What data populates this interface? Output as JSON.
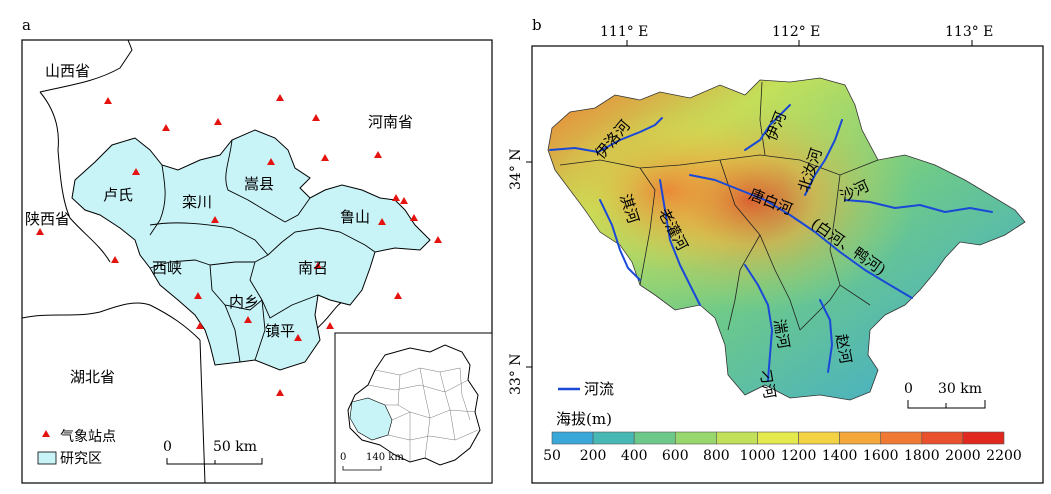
{
  "panel_a": {
    "label": "a",
    "provinces": {
      "shanxi": "山西省",
      "henan": "河南省",
      "shaanxi": "陕西省",
      "hubei": "湖北省"
    },
    "counties": {
      "lushi": "卢氏",
      "luanchuan": "栾川",
      "songxian": "嵩县",
      "lushan": "鲁山",
      "xixia": "西峡",
      "nanzhao": "南召",
      "neixiang": "内乡",
      "zhenping": "镇平"
    },
    "legend": {
      "station": "气象站点",
      "study_area": "研究区"
    },
    "scale": {
      "zero": "0",
      "value": "50 km"
    },
    "inset_scale": {
      "zero": "0",
      "value": "140 km"
    }
  },
  "panel_b": {
    "label": "b",
    "lon_ticks": [
      "111° E",
      "112° E",
      "113° E"
    ],
    "lat_ticks": [
      "34° N",
      "33° N"
    ],
    "rivers": {
      "yiluo": "伊洛河",
      "yi": "伊河",
      "beiru": "北汝河",
      "sha": "沙河",
      "tangbai": "唐白河",
      "baiya": "(白河、鸭河)",
      "laoguan": "老灌河",
      "dan": "淇河",
      "tuan": "湍河",
      "diao": "刁河",
      "zhao": "赵河"
    },
    "legend": {
      "river": "河流",
      "elevation_title": "海拔(m)"
    },
    "elevation_ticks": [
      "50",
      "200",
      "400",
      "600",
      "800",
      "1000",
      "1200",
      "1400",
      "1600",
      "1800",
      "2000",
      "2200"
    ],
    "colors": [
      "#3aa7d9",
      "#48b8b5",
      "#6dc98a",
      "#98d66e",
      "#c3e05a",
      "#e4e94e",
      "#f3d244",
      "#f5a73a",
      "#f07a33",
      "#e9502c",
      "#e0281f"
    ],
    "scale": {
      "zero": "0",
      "value": "30 km"
    }
  }
}
